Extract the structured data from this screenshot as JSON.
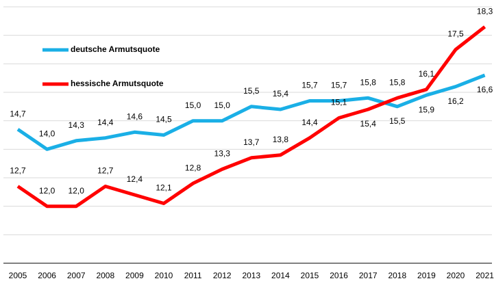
{
  "chart_data": {
    "type": "line",
    "categories": [
      "2005",
      "2006",
      "2007",
      "2008",
      "2009",
      "2010",
      "2011",
      "2012",
      "2013",
      "2014",
      "2015",
      "2016",
      "2017",
      "2018",
      "2019",
      "2020",
      "2021"
    ],
    "series": [
      {
        "name": "deutsche Armutsquote",
        "color": "#1aafe6",
        "values": [
          14.7,
          14.0,
          14.3,
          14.4,
          14.6,
          14.5,
          15.0,
          15.0,
          15.5,
          15.4,
          15.7,
          15.7,
          15.8,
          15.5,
          15.9,
          16.2,
          16.6
        ],
        "value_labels": [
          "14,7",
          "14,0",
          "14,3",
          "14,4",
          "14,6",
          "14,5",
          "15,0",
          "15,0",
          "15,5",
          "15,4",
          "15,7",
          "15,7",
          "15,8",
          "15,5",
          "15,9",
          "16,2",
          "16,6"
        ]
      },
      {
        "name": "hessische Armutsquote",
        "color": "#ff0000",
        "values": [
          12.7,
          12.0,
          12.0,
          12.7,
          12.4,
          12.1,
          12.8,
          13.3,
          13.7,
          13.8,
          14.4,
          15.1,
          15.4,
          15.8,
          16.1,
          17.5,
          18.3
        ],
        "value_labels": [
          "12,7",
          "12,0",
          "12,0",
          "12,7",
          "12,4",
          "12,1",
          "12,8",
          "13,3",
          "13,7",
          "13,8",
          "14,4",
          "15,1",
          "15,4",
          "15,8",
          "16,1",
          "17,5",
          "18,3"
        ]
      }
    ],
    "ylim": [
      10,
      19
    ],
    "yticks": [
      10,
      11,
      12,
      13,
      14,
      15,
      16,
      17,
      18,
      19
    ],
    "grid": true,
    "legend": "upper left"
  }
}
